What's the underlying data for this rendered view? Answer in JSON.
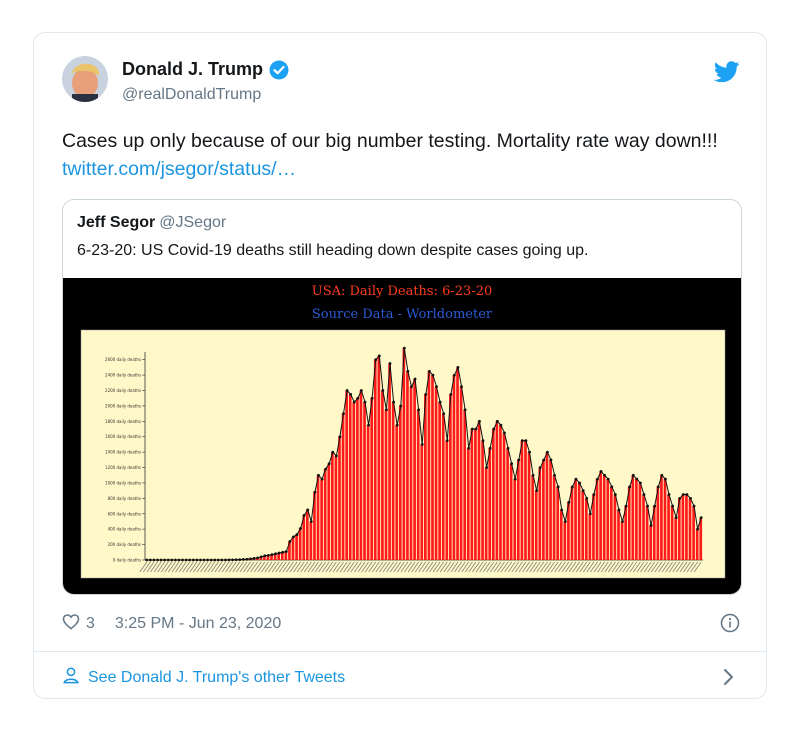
{
  "tweet": {
    "author_name": "Donald J. Trump",
    "handle": "@realDonaldTrump",
    "text": "Cases up only because of our big number testing. Mortality rate way down!!! ",
    "link_text": "twitter.com/jsegor/status/…",
    "likes": "3",
    "timestamp": "3:25 PM - Jun 23, 2020",
    "see_more": "See Donald J. Trump's other Tweets"
  },
  "quote": {
    "author_name": "Jeff Segor",
    "handle": "@JSegor",
    "text": "6-23-20: US Covid-19 deaths still heading down despite cases going up."
  },
  "colors": {
    "link": "#1b95e0",
    "verified": "#1da1f2",
    "bars": "#ff1a1a",
    "plot_bg": "#fff8c8",
    "title": "#ff3b1f",
    "subtitle": "#2b5bd7"
  },
  "chart_data": {
    "type": "bar",
    "title": "USA: Daily Deaths: 6-23-20",
    "subtitle": "Source Data - Worldometer",
    "ylim": [
      0,
      2700
    ],
    "ytick_labels": [
      "0 daily deaths",
      "200 daily deaths",
      "400 daily deaths",
      "600 daily deaths",
      "800 daily deaths",
      "1000 daily deaths",
      "1200 daily deaths",
      "1400 daily deaths",
      "1600 daily deaths",
      "1800 daily deaths",
      "2000 daily deaths",
      "2200 daily deaths",
      "2400 daily deaths",
      "2600 daily deaths"
    ],
    "ytick_values": [
      0,
      200,
      400,
      600,
      800,
      1000,
      1200,
      1400,
      1600,
      1800,
      2000,
      2200,
      2400,
      2600
    ],
    "values": [
      0,
      0,
      0,
      0,
      0,
      0,
      0,
      0,
      0,
      0,
      0,
      0,
      0,
      0,
      0,
      0,
      0,
      0,
      0,
      0,
      0,
      0,
      0,
      1,
      2,
      3,
      5,
      8,
      10,
      15,
      20,
      28,
      40,
      55,
      60,
      70,
      80,
      90,
      100,
      110,
      240,
      300,
      330,
      410,
      580,
      650,
      500,
      880,
      1100,
      1050,
      1180,
      1250,
      1400,
      1350,
      1600,
      1900,
      2200,
      2150,
      2050,
      2100,
      2200,
      2050,
      1750,
      2100,
      2600,
      2650,
      2200,
      1950,
      2550,
      2050,
      1750,
      2000,
      2750,
      2450,
      2250,
      2350,
      1950,
      1500,
      2150,
      2450,
      2400,
      2250,
      2050,
      1900,
      1550,
      2150,
      2400,
      2500,
      2250,
      1950,
      1450,
      1700,
      1700,
      1800,
      1550,
      1200,
      1450,
      1700,
      1800,
      1750,
      1650,
      1450,
      1250,
      1050,
      1300,
      1550,
      1550,
      1400,
      1100,
      900,
      1200,
      1300,
      1400,
      1300,
      1100,
      950,
      650,
      500,
      750,
      950,
      1050,
      1000,
      900,
      800,
      600,
      850,
      1050,
      1150,
      1100,
      1050,
      950,
      850,
      650,
      500,
      700,
      950,
      1100,
      1050,
      1000,
      850,
      700,
      450,
      700,
      950,
      1100,
      1050,
      850,
      700,
      550,
      800,
      850,
      850,
      800,
      700,
      400,
      550
    ]
  }
}
